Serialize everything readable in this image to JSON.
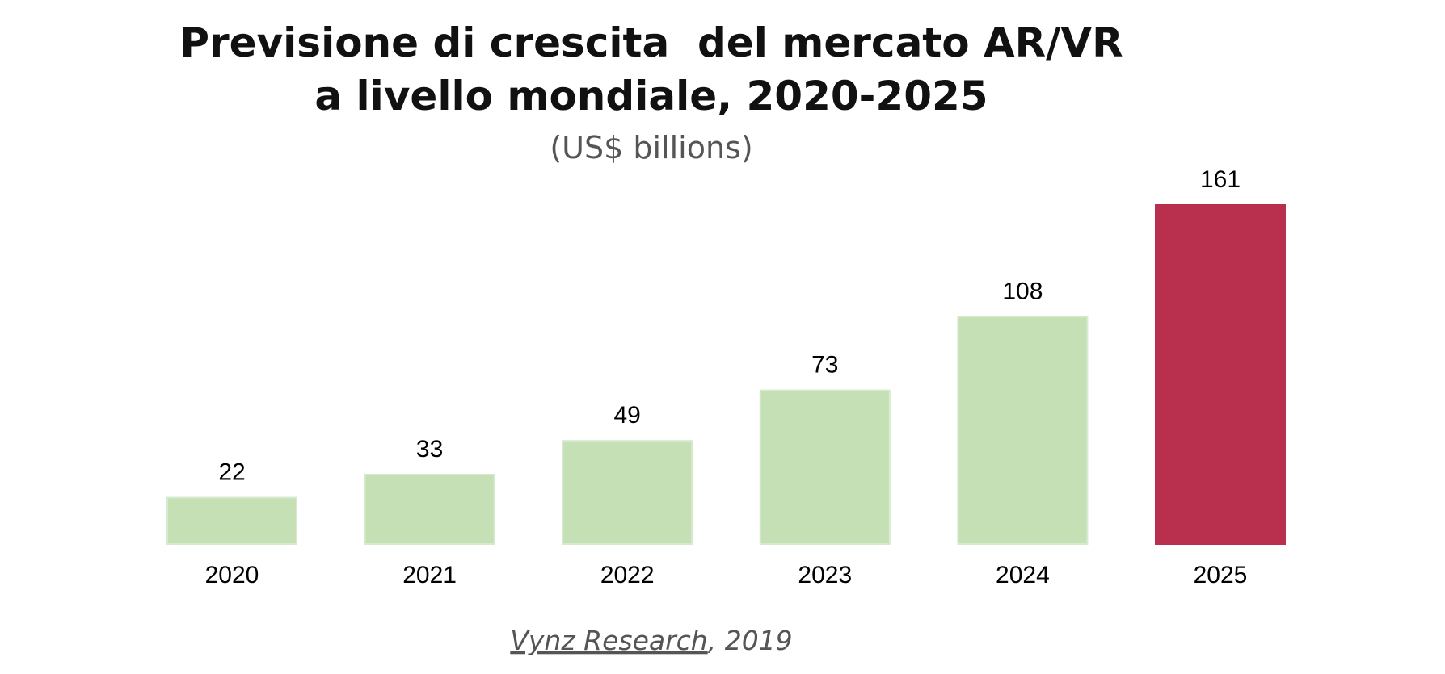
{
  "chart_data": {
    "type": "bar",
    "title": [
      "Previsione di crescita  del mercato AR/VR",
      "a livello mondiale, 2020-2025"
    ],
    "subtitle": "(US$ billions)",
    "categories": [
      "2020",
      "2021",
      "2022",
      "2023",
      "2024",
      "2025"
    ],
    "values": [
      22,
      33,
      49,
      73,
      108,
      161
    ],
    "colors": [
      "#c5e0b4",
      "#c5e0b4",
      "#c5e0b4",
      "#c5e0b4",
      "#c5e0b4",
      "#b8304e"
    ],
    "source": {
      "name": "Vynz Research",
      "year": ", 2019"
    }
  }
}
